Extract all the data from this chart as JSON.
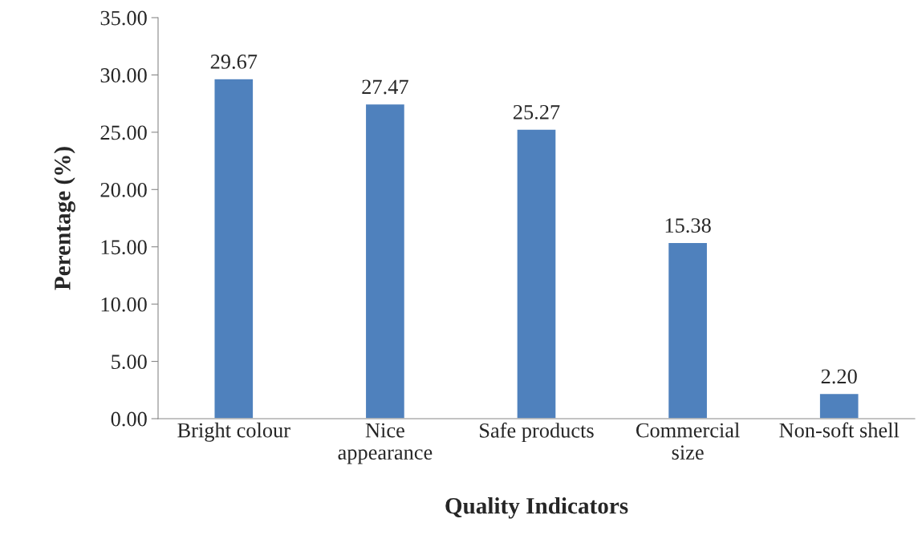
{
  "chart_data": {
    "type": "bar",
    "xlabel": "Quality Indicators",
    "ylabel": "Perentage (%)",
    "categories": [
      "Bright colour",
      "Nice\nappearance",
      "Safe products",
      "Commercial\nsize",
      "Non-soft shell"
    ],
    "values": [
      29.67,
      27.47,
      25.27,
      15.38,
      2.2
    ],
    "value_labels": [
      "29.67",
      "27.47",
      "25.27",
      "15.38",
      "2.20"
    ],
    "color": "#4f81bd",
    "ylim": [
      0,
      35
    ],
    "yticks": [
      {
        "value": 0,
        "label": "0.00"
      },
      {
        "value": 5,
        "label": "5.00"
      },
      {
        "value": 10,
        "label": "10.00"
      },
      {
        "value": 15,
        "label": "15.00"
      },
      {
        "value": 20,
        "label": "20.00"
      },
      {
        "value": 25,
        "label": "25.00"
      },
      {
        "value": 30,
        "label": "30.00"
      },
      {
        "value": 35,
        "label": "35.00"
      }
    ],
    "grid": false,
    "legend": false
  }
}
